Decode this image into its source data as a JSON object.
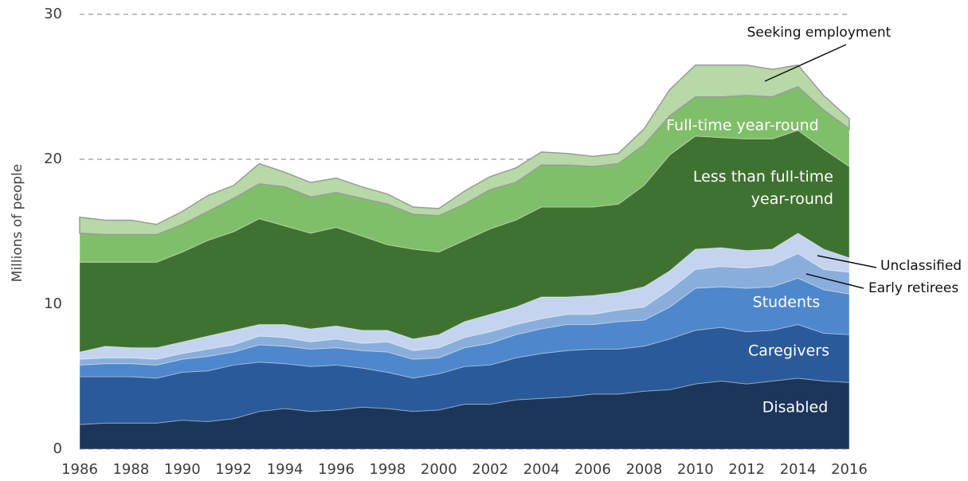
{
  "chart_data": {
    "type": "stacked-area",
    "y_label": "Millions of people",
    "x": [
      1986,
      1987,
      1988,
      1989,
      1990,
      1991,
      1992,
      1993,
      1994,
      1995,
      1996,
      1997,
      1998,
      1999,
      2000,
      2001,
      2002,
      2003,
      2004,
      2005,
      2006,
      2007,
      2008,
      2009,
      2010,
      2011,
      2012,
      2013,
      2014,
      2015,
      2016
    ],
    "xlim": [
      1986,
      2016
    ],
    "xticks": [
      1986,
      1988,
      1990,
      1992,
      1994,
      1996,
      1998,
      2000,
      2002,
      2004,
      2006,
      2008,
      2010,
      2012,
      2014,
      2016
    ],
    "ylim": [
      0,
      30
    ],
    "yticks": [
      0,
      10,
      20,
      30
    ],
    "grid": true,
    "series": [
      {
        "name": "Disabled",
        "color": "#1c365a",
        "values": [
          1.7,
          1.8,
          1.8,
          1.8,
          2.0,
          1.9,
          2.1,
          2.6,
          2.8,
          2.6,
          2.7,
          2.9,
          2.8,
          2.6,
          2.7,
          3.1,
          3.1,
          3.4,
          3.5,
          3.6,
          3.8,
          3.8,
          4.0,
          4.1,
          4.5,
          4.7,
          4.5,
          4.7,
          4.9,
          4.7,
          4.6
        ]
      },
      {
        "name": "Caregivers",
        "color": "#2a5a9a",
        "values": [
          3.3,
          3.2,
          3.2,
          3.1,
          3.3,
          3.5,
          3.7,
          3.4,
          3.1,
          3.1,
          3.1,
          2.7,
          2.5,
          2.3,
          2.5,
          2.6,
          2.7,
          2.9,
          3.1,
          3.2,
          3.1,
          3.1,
          3.1,
          3.5,
          3.7,
          3.7,
          3.6,
          3.5,
          3.7,
          3.3,
          3.3
        ]
      },
      {
        "name": "Students",
        "color": "#4f87cc",
        "values": [
          0.8,
          0.9,
          0.9,
          0.9,
          0.9,
          1.0,
          0.9,
          1.2,
          1.2,
          1.2,
          1.2,
          1.2,
          1.4,
          1.3,
          1.1,
          1.3,
          1.5,
          1.6,
          1.7,
          1.8,
          1.7,
          1.9,
          1.8,
          2.2,
          2.9,
          2.8,
          3.0,
          3.0,
          3.2,
          3.0,
          2.8
        ]
      },
      {
        "name": "Early retirees",
        "color": "#8aaedc",
        "values": [
          0.4,
          0.4,
          0.4,
          0.4,
          0.4,
          0.5,
          0.5,
          0.6,
          0.6,
          0.5,
          0.6,
          0.5,
          0.7,
          0.6,
          0.7,
          0.7,
          0.8,
          0.7,
          0.7,
          0.7,
          0.7,
          0.8,
          0.9,
          1.2,
          1.3,
          1.4,
          1.4,
          1.5,
          1.7,
          1.4,
          1.5
        ]
      },
      {
        "name": "Unclassified",
        "color": "#c4d4ee",
        "values": [
          0.5,
          0.8,
          0.7,
          0.8,
          0.8,
          0.9,
          1.0,
          0.8,
          0.9,
          0.9,
          0.9,
          0.9,
          0.8,
          0.8,
          0.9,
          1.1,
          1.2,
          1.2,
          1.5,
          1.2,
          1.3,
          1.2,
          1.4,
          1.3,
          1.4,
          1.3,
          1.2,
          1.1,
          1.4,
          1.4,
          1.0
        ]
      },
      {
        "name": "Less than full-time year-round",
        "color": "#3f7230",
        "values": [
          6.2,
          5.8,
          5.9,
          5.9,
          6.2,
          6.6,
          6.8,
          7.3,
          6.8,
          6.6,
          6.8,
          6.5,
          5.9,
          6.2,
          5.7,
          5.6,
          5.9,
          6.0,
          6.2,
          6.2,
          6.1,
          6.1,
          7.0,
          8.0,
          7.8,
          7.6,
          7.7,
          7.6,
          7.1,
          6.9,
          6.3
        ]
      },
      {
        "name": "Full-time year-round",
        "color": "#80bf6a",
        "values": [
          2.0,
          1.9,
          1.9,
          1.9,
          1.9,
          2.0,
          2.3,
          2.4,
          2.7,
          2.5,
          2.4,
          2.6,
          2.8,
          2.4,
          2.5,
          2.5,
          2.7,
          2.6,
          2.9,
          2.9,
          2.8,
          2.8,
          2.8,
          2.7,
          2.7,
          2.8,
          3.0,
          2.9,
          3.0,
          2.7,
          2.6
        ]
      },
      {
        "name": "Seeking employment",
        "color": "#b6d9a7",
        "values": [
          1.1,
          1.0,
          1.0,
          0.7,
          0.9,
          1.1,
          0.9,
          1.4,
          1.0,
          1.0,
          1.0,
          0.8,
          0.7,
          0.5,
          0.5,
          0.9,
          0.9,
          1.0,
          0.9,
          0.8,
          0.7,
          0.7,
          1.1,
          1.8,
          2.2,
          2.2,
          2.1,
          1.9,
          1.5,
          1.0,
          0.7
        ]
      }
    ]
  }
}
